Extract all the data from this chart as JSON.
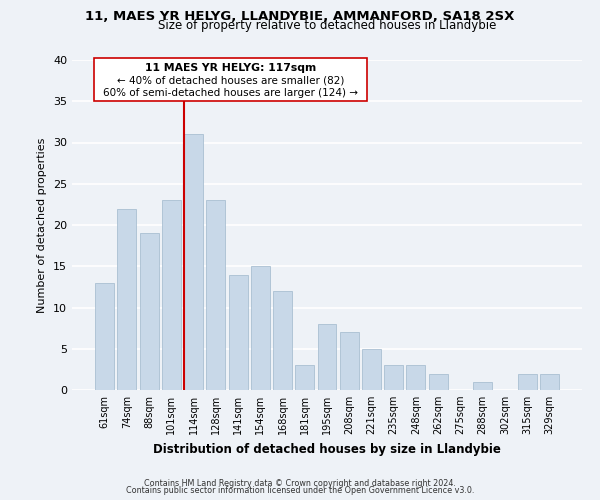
{
  "title1": "11, MAES YR HELYG, LLANDYBIE, AMMANFORD, SA18 2SX",
  "title2": "Size of property relative to detached houses in Llandybie",
  "xlabel": "Distribution of detached houses by size in Llandybie",
  "ylabel": "Number of detached properties",
  "categories": [
    "61sqm",
    "74sqm",
    "88sqm",
    "101sqm",
    "114sqm",
    "128sqm",
    "141sqm",
    "154sqm",
    "168sqm",
    "181sqm",
    "195sqm",
    "208sqm",
    "221sqm",
    "235sqm",
    "248sqm",
    "262sqm",
    "275sqm",
    "288sqm",
    "302sqm",
    "315sqm",
    "329sqm"
  ],
  "values": [
    13,
    22,
    19,
    23,
    31,
    23,
    14,
    15,
    12,
    3,
    8,
    7,
    5,
    3,
    3,
    2,
    0,
    1,
    0,
    2,
    2
  ],
  "bar_color": "#c8d8e8",
  "bar_edge_color": "#a0b8cc",
  "highlight_color": "#cc0000",
  "highlight_index": 4,
  "ylim": [
    0,
    40
  ],
  "yticks": [
    0,
    5,
    10,
    15,
    20,
    25,
    30,
    35,
    40
  ],
  "annotation_title": "11 MAES YR HELYG: 117sqm",
  "annotation_line1": "← 40% of detached houses are smaller (82)",
  "annotation_line2": "60% of semi-detached houses are larger (124) →",
  "footer1": "Contains HM Land Registry data © Crown copyright and database right 2024.",
  "footer2": "Contains public sector information licensed under the Open Government Licence v3.0.",
  "background_color": "#eef2f7",
  "plot_background": "#eef2f7",
  "grid_color": "#ffffff",
  "annotation_box_color": "#ffffff",
  "annotation_box_edge": "#cc0000"
}
